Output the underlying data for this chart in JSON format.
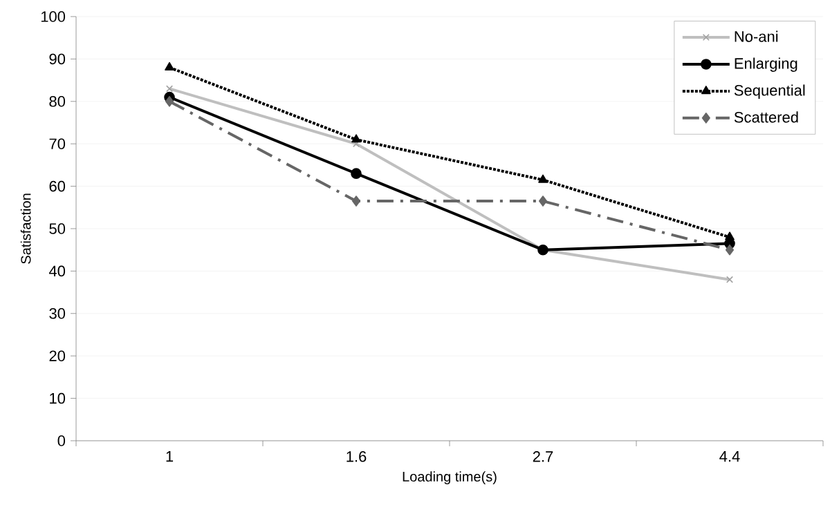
{
  "chart_data": {
    "type": "line",
    "xlabel": "Loading time(s)",
    "ylabel": "Satisfaction",
    "categories": [
      "1",
      "1.6",
      "2.7",
      "4.4"
    ],
    "ylim": [
      0,
      100
    ],
    "yticks": [
      0,
      10,
      20,
      30,
      40,
      50,
      60,
      70,
      80,
      90,
      100
    ],
    "grid": "y",
    "legend": "top right",
    "series": [
      {
        "name": "No-ani",
        "color": "#bfbfbf",
        "marker": "cross",
        "line_style": "solid",
        "values": [
          83,
          70,
          45,
          38
        ]
      },
      {
        "name": "Enlarging",
        "color": "#000000",
        "marker": "circle",
        "line_style": "solid",
        "values": [
          81,
          63,
          45,
          46.5
        ]
      },
      {
        "name": "Sequential",
        "color": "#000000",
        "marker": "triangle",
        "line_style": "dotted",
        "values": [
          88,
          71,
          61.5,
          48
        ]
      },
      {
        "name": "Scattered",
        "color": "#666666",
        "marker": "diamond",
        "line_style": "dashdot",
        "values": [
          80,
          56.5,
          56.5,
          45
        ]
      }
    ]
  }
}
